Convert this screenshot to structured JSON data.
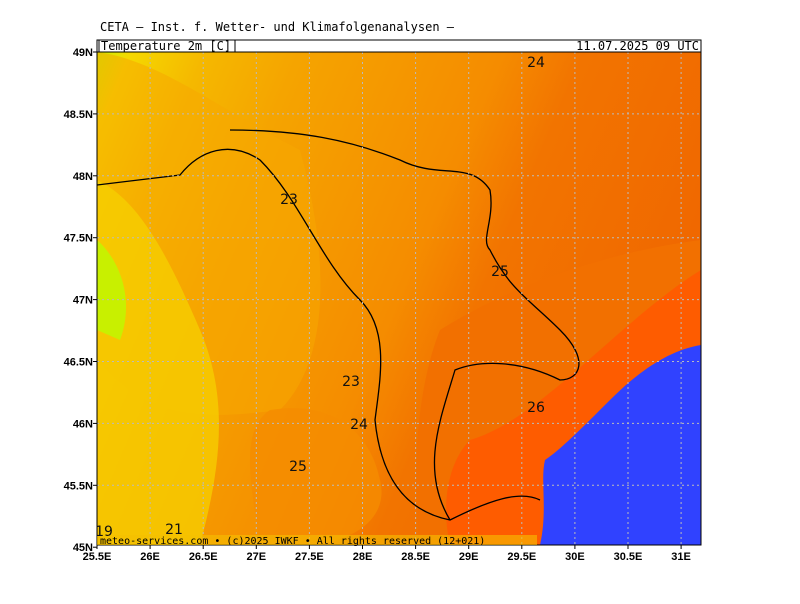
{
  "header": {
    "title": "CETA — Inst. f. Wetter- und Klimafolgenanalysen —",
    "parameter": "Temperature_2m [C]",
    "valid_time": "11.07.2025 09 UTC"
  },
  "map": {
    "lat_labels": [
      "49N",
      "48.5N",
      "48N",
      "47.5N",
      "47N",
      "46.5N",
      "46N",
      "45.5N",
      "45N"
    ],
    "lon_labels": [
      "25.5E",
      "26E",
      "26.5E",
      "27E",
      "27.5E",
      "28E",
      "28.5E",
      "29E",
      "29.5E",
      "30E",
      "30.5E",
      "31E"
    ],
    "contour_labels": [
      "24",
      "23",
      "25",
      "23",
      "24",
      "26",
      "25",
      "21",
      "19"
    ],
    "footer": "meteo-services.com • (c)2025 IWKF • All rights reserved (12+021)"
  }
}
